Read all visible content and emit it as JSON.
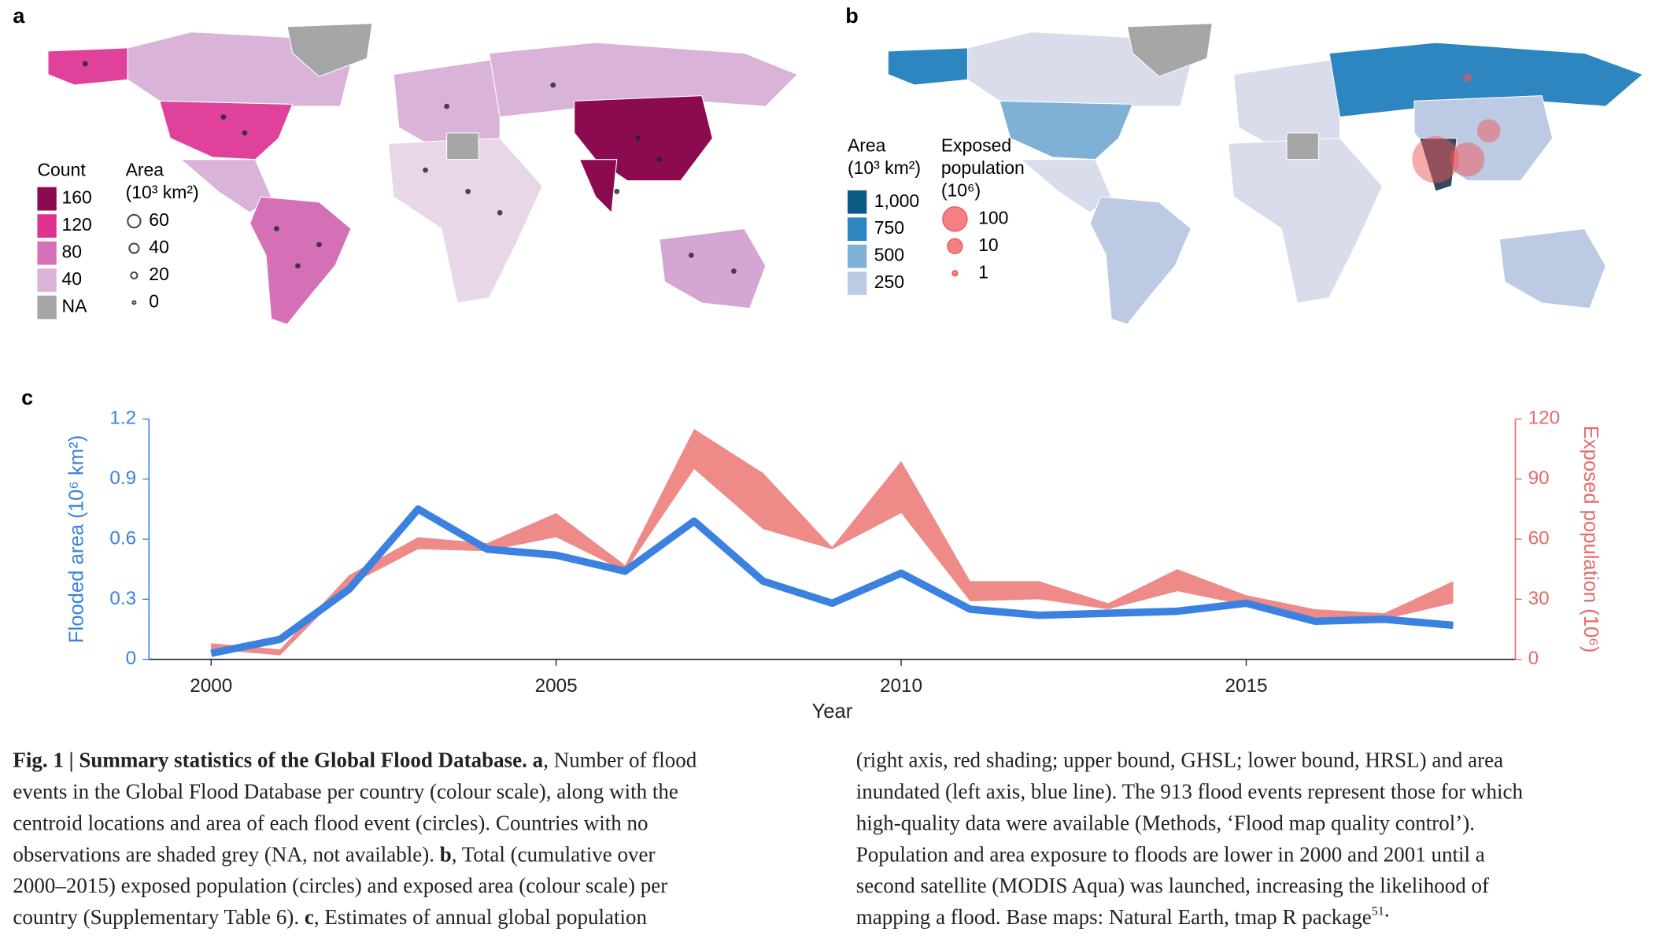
{
  "panel_a": {
    "label": "a",
    "count_legend": {
      "title": "Count",
      "levels": [
        160,
        120,
        80,
        40
      ],
      "colors": [
        "#8b0a50",
        "#e0338f",
        "#d670b6",
        "#d9b3d8"
      ],
      "na_label": "NA",
      "na_color": "#a6a6a6"
    },
    "area_legend": {
      "title_lines": [
        "Area",
        "(10³ km²)"
      ],
      "levels": [
        60,
        40,
        20,
        0
      ]
    }
  },
  "panel_b": {
    "label": "b",
    "area_legend": {
      "title_lines": [
        "Area",
        "(10³ km²)"
      ],
      "levels": [
        {
          "value": 1000,
          "label": "1,000"
        },
        750,
        500,
        250
      ],
      "colors": [
        "#0c5a86",
        "#2e86c1",
        "#7fb0d6",
        "#bccbe3"
      ]
    },
    "population_legend": {
      "title_lines": [
        "Exposed",
        "population",
        "(10⁶)"
      ],
      "levels": [
        100,
        10,
        1
      ],
      "color": "#f0555a"
    }
  },
  "chart_data": {
    "type": "line",
    "label": "c",
    "x_label": "Year",
    "y_label": "Flooded area (10⁶ km²)",
    "y2_label": "Exposed population (10⁶)",
    "x": [
      2000,
      2001,
      2002,
      2003,
      2004,
      2005,
      2006,
      2007,
      2008,
      2009,
      2010,
      2011,
      2012,
      2013,
      2014,
      2015,
      2016,
      2017,
      2018
    ],
    "xlim": [
      1999.1,
      2018.9
    ],
    "xticks": [
      2000,
      2005,
      2010,
      2015
    ],
    "ylim": [
      0,
      1.2
    ],
    "yticks": [
      0,
      {
        "value": 0.3,
        "label": "0.3"
      },
      {
        "value": 0.6,
        "label": "0.6"
      },
      {
        "value": 0.9,
        "label": "0.9"
      },
      {
        "value": 1.2,
        "label": "1.2"
      }
    ],
    "y2lim": [
      0,
      120
    ],
    "y2ticks": [
      0,
      30,
      60,
      90,
      120
    ],
    "series": [
      {
        "type": "line",
        "color": "#3b82e0",
        "values": [
          0.03,
          0.1,
          0.35,
          0.75,
          0.55,
          0.52,
          0.44,
          0.69,
          0.39,
          0.28,
          0.43,
          0.25,
          0.22,
          0.23,
          0.24,
          0.28,
          0.19,
          0.2,
          0.17
        ]
      },
      {
        "type": "band",
        "axis": "y2",
        "color": "#ee8a88",
        "lower": [
          5,
          2,
          37,
          55,
          54,
          61,
          44,
          95,
          65,
          55,
          73,
          29,
          30,
          25,
          34,
          27,
          21,
          20,
          28
        ],
        "upper": [
          8,
          5,
          42,
          61,
          58,
          73,
          47,
          115,
          93,
          56,
          99,
          39,
          39,
          28,
          45,
          32,
          25,
          23,
          39
        ]
      }
    ]
  },
  "caption": {
    "left": [
      [
        {
          "text": "Fig. 1 | Summary statistics of the Global Flood Database. a",
          "bold": true
        },
        {
          "text": ", Number of flood",
          "bold": false
        }
      ],
      [
        {
          "text": "events in the Global Flood Database per country (colour scale), along with the",
          "bold": false
        }
      ],
      [
        {
          "text": "centroid locations and area of each flood event (circles). Countries with no",
          "bold": false
        }
      ],
      [
        {
          "text": "observations are shaded grey (NA, not available). ",
          "bold": false
        },
        {
          "text": "b",
          "bold": true
        },
        {
          "text": ", Total (cumulative over",
          "bold": false
        }
      ],
      [
        {
          "text": "2000–2015) exposed population (circles) and exposed area (colour scale) per",
          "bold": false
        }
      ],
      [
        {
          "text": "country (Supplementary Table 6). ",
          "bold": false
        },
        {
          "text": "c",
          "bold": true
        },
        {
          "text": ", Estimates of annual global population",
          "bold": false
        }
      ]
    ],
    "right": [
      [
        {
          "text": "(right axis, red shading; upper bound, GHSL; lower bound, HRSL) and area",
          "bold": false
        }
      ],
      [
        {
          "text": "inundated (left axis, blue line). The 913 flood events represent those for which",
          "bold": false
        }
      ],
      [
        {
          "text": "high-quality data were available (Methods, ‘Flood map quality control’).",
          "bold": false
        }
      ],
      [
        {
          "text": "Population and area exposure to floods are lower in 2000 and 2001 until a",
          "bold": false
        }
      ],
      [
        {
          "text": "second satellite (MODIS Aqua) was launched, increasing the likelihood of",
          "bold": false
        }
      ],
      [
        {
          "text": "mapping a flood. Base maps: Natural Earth, tmap R package",
          "bold": false
        },
        {
          "text": "51",
          "bold": false,
          "sup": true
        },
        {
          "text": ".",
          "bold": false
        }
      ]
    ]
  }
}
